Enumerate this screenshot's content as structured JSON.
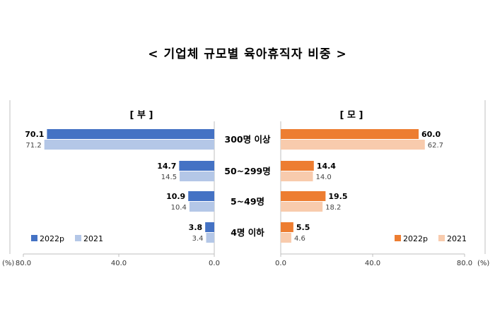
{
  "title": "< 기업체 규모별 육아휴직자 비중 >",
  "colors": {
    "father_2022": "#4472C4",
    "father_2021": "#B4C7E7",
    "mother_2022": "#ED7D31",
    "mother_2021": "#F8CBAD",
    "axis": "#BFBFBF"
  },
  "chart_data": [
    {
      "type": "bar",
      "orientation": "horizontal",
      "direction": "right-to-left",
      "panel_title": "[ 부 ]",
      "unit_label": "(%)",
      "categories": [
        "300명 이상",
        "50~299명",
        "5~49명",
        "4명 이하"
      ],
      "series": [
        {
          "name": "2022p",
          "values": [
            70.1,
            14.7,
            10.9,
            3.8
          ]
        },
        {
          "name": "2021",
          "values": [
            71.2,
            14.5,
            10.4,
            3.4
          ]
        }
      ],
      "xlim": [
        80,
        0
      ],
      "ticks": [
        "80.0",
        "40.0",
        "0.0"
      ],
      "legend": "bottom-left"
    },
    {
      "type": "bar",
      "orientation": "horizontal",
      "direction": "left-to-right",
      "panel_title": "[ 모 ]",
      "unit_label": "(%)",
      "categories": [
        "300명 이상",
        "50~299명",
        "5~49명",
        "4명 이하"
      ],
      "series": [
        {
          "name": "2022p",
          "values": [
            60.0,
            14.4,
            19.5,
            5.5
          ]
        },
        {
          "name": "2021",
          "values": [
            62.7,
            14.0,
            18.2,
            4.6
          ]
        }
      ],
      "xlim": [
        0,
        80
      ],
      "ticks": [
        "0.0",
        "40.0",
        "80.0"
      ],
      "legend": "bottom-right"
    }
  ]
}
